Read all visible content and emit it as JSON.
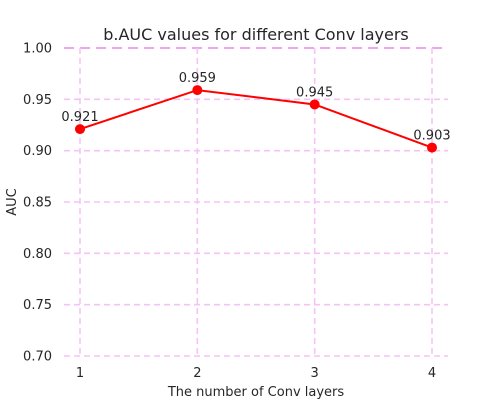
{
  "chart_data": {
    "type": "line",
    "title": "b.AUC values for different Conv layers",
    "xlabel": "The number of Conv layers",
    "ylabel": "AUC",
    "x": [
      1,
      2,
      3,
      4
    ],
    "x_tick_labels": [
      "1",
      "2",
      "3",
      "4"
    ],
    "y_tick_labels": [
      "0.70",
      "0.75",
      "0.80",
      "0.85",
      "0.90",
      "0.95",
      "1.00"
    ],
    "y_ticks": [
      0.7,
      0.75,
      0.8,
      0.85,
      0.9,
      0.95,
      1.0
    ],
    "ylim": [
      0.7,
      1.0
    ],
    "series": [
      {
        "values": [
          0.921,
          0.959,
          0.945,
          0.903
        ],
        "labels": [
          "0.921",
          "0.959",
          "0.945",
          "0.903"
        ],
        "color": "#ff0000"
      }
    ],
    "grid": true,
    "grid_color": "#f5c3f5",
    "grid_style": "dashed",
    "marker": "circle"
  }
}
